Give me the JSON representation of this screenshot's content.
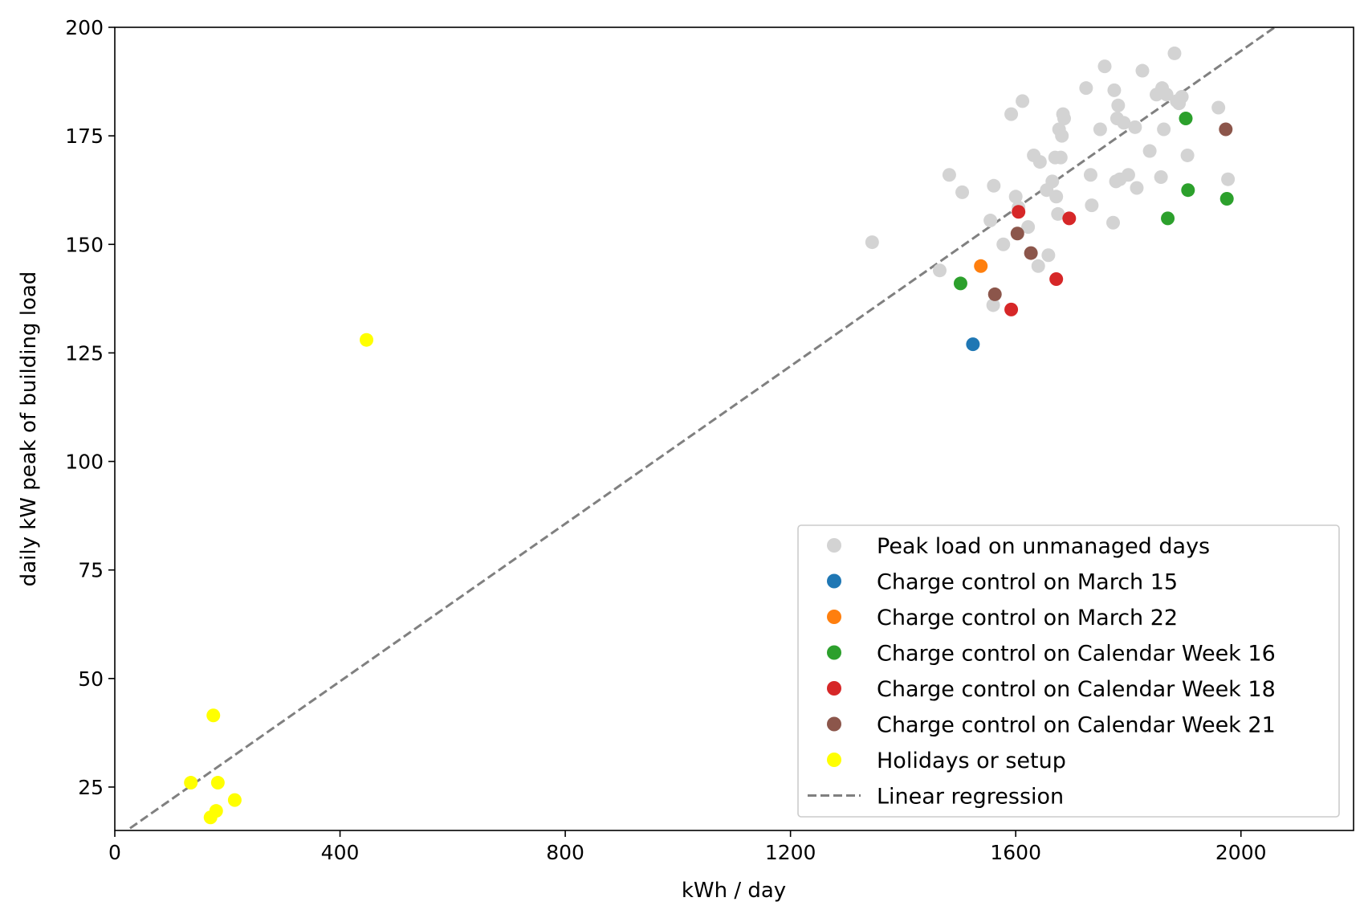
{
  "chart_data": {
    "type": "scatter",
    "title": "",
    "xlabel": "kWh / day",
    "ylabel": "daily kW peak of building load",
    "xlim": [
      0,
      2200
    ],
    "ylim": [
      15,
      200
    ],
    "xticks": [
      0,
      400,
      800,
      1200,
      1600,
      2000
    ],
    "yticks": [
      25,
      50,
      75,
      100,
      125,
      150,
      175,
      200
    ],
    "grid": false,
    "legend_position": "lower-right",
    "series": [
      {
        "name": "Peak load on unmanaged days",
        "color": "#d3d3d3",
        "points": [
          [
            1345,
            150.5
          ],
          [
            1465,
            144
          ],
          [
            1482,
            166
          ],
          [
            1505,
            162
          ],
          [
            1555,
            155.5
          ],
          [
            1560,
            136
          ],
          [
            1561,
            163.5
          ],
          [
            1578,
            150
          ],
          [
            1592,
            180
          ],
          [
            1600,
            161
          ],
          [
            1605,
            158.5
          ],
          [
            1612,
            183
          ],
          [
            1622,
            154
          ],
          [
            1632,
            170.5
          ],
          [
            1640,
            145
          ],
          [
            1643,
            169
          ],
          [
            1655,
            162.5
          ],
          [
            1658,
            147.5
          ],
          [
            1665,
            164.5
          ],
          [
            1670,
            170
          ],
          [
            1672,
            161
          ],
          [
            1675,
            157
          ],
          [
            1677,
            176.5
          ],
          [
            1680,
            170
          ],
          [
            1682,
            175
          ],
          [
            1684,
            180
          ],
          [
            1686,
            179
          ],
          [
            1725,
            186
          ],
          [
            1733,
            166
          ],
          [
            1735,
            159
          ],
          [
            1750,
            176.5
          ],
          [
            1758,
            191
          ],
          [
            1773,
            155
          ],
          [
            1775,
            185.5
          ],
          [
            1778,
            164.5
          ],
          [
            1780,
            179
          ],
          [
            1782,
            182
          ],
          [
            1785,
            165
          ],
          [
            1792,
            178
          ],
          [
            1800,
            166
          ],
          [
            1812,
            177
          ],
          [
            1815,
            163
          ],
          [
            1825,
            190
          ],
          [
            1838,
            171.5
          ],
          [
            1850,
            184.5
          ],
          [
            1858,
            165.5
          ],
          [
            1860,
            186
          ],
          [
            1863,
            176.5
          ],
          [
            1868,
            184.5
          ],
          [
            1882,
            194
          ],
          [
            1886,
            183
          ],
          [
            1890,
            182.5
          ],
          [
            1895,
            184
          ],
          [
            1905,
            170.5
          ],
          [
            1960,
            181.5
          ],
          [
            1977,
            165
          ]
        ]
      },
      {
        "name": "Charge control on March 15",
        "color": "#1f77b4",
        "points": [
          [
            1524,
            127
          ]
        ]
      },
      {
        "name": "Charge control on March 22",
        "color": "#ff7f0e",
        "points": [
          [
            1538,
            145
          ]
        ]
      },
      {
        "name": "Charge control on Calendar Week 16",
        "color": "#2ca02c",
        "points": [
          [
            1502,
            141
          ],
          [
            1870,
            156
          ],
          [
            1902,
            179
          ],
          [
            1906,
            162.5
          ],
          [
            1975,
            160.5
          ]
        ]
      },
      {
        "name": "Charge control on Calendar Week 18",
        "color": "#d62728",
        "points": [
          [
            1592,
            135
          ],
          [
            1605,
            157.5
          ],
          [
            1672,
            142
          ],
          [
            1695,
            156
          ]
        ]
      },
      {
        "name": "Charge control on Calendar Week 21",
        "color": "#8c564b",
        "points": [
          [
            1563,
            138.5
          ],
          [
            1603,
            152.5
          ],
          [
            1627,
            148
          ],
          [
            1973,
            176.5
          ]
        ]
      },
      {
        "name": "Holidays or setup",
        "color": "#ffff00",
        "points": [
          [
            135,
            26
          ],
          [
            170,
            18
          ],
          [
            175,
            41.5
          ],
          [
            180,
            19.5
          ],
          [
            183,
            26
          ],
          [
            213,
            22
          ],
          [
            447,
            128
          ]
        ]
      }
    ],
    "regression": {
      "name": "Linear regression",
      "color": "#808080",
      "points": [
        [
          27,
          15.5
        ],
        [
          2060,
          200
        ]
      ]
    }
  }
}
